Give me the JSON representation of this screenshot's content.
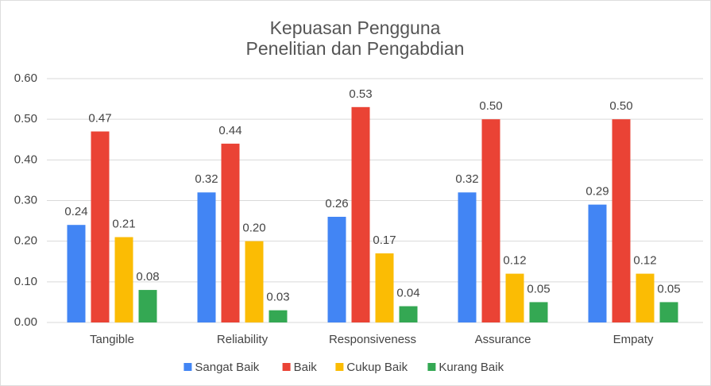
{
  "chart_data": {
    "type": "bar",
    "title": [
      "Kepuasan Pengguna",
      "Penelitian dan Pengabdian"
    ],
    "categories": [
      "Tangible",
      "Reliability",
      "Responsiveness",
      "Assurance",
      "Empaty"
    ],
    "series": [
      {
        "name": "Sangat Baik",
        "color": "#4285f4",
        "values": [
          0.24,
          0.32,
          0.26,
          0.32,
          0.29
        ],
        "value_labels": [
          "0.24",
          "0.32",
          "0.26",
          "0.32",
          "0.29"
        ]
      },
      {
        "name": "Baik",
        "color": "#ea4335",
        "values": [
          0.47,
          0.44,
          0.53,
          0.5,
          0.5
        ],
        "value_labels": [
          "0.47",
          "0.44",
          "0.53",
          "0.50",
          "0.50"
        ]
      },
      {
        "name": "Cukup Baik",
        "color": "#fbbc04",
        "values": [
          0.21,
          0.2,
          0.17,
          0.12,
          0.12
        ],
        "value_labels": [
          "0.21",
          "0.20",
          "0.17",
          "0.12",
          "0.12"
        ]
      },
      {
        "name": "Kurang Baik",
        "color": "#34a853",
        "values": [
          0.08,
          0.03,
          0.04,
          0.05,
          0.05
        ],
        "value_labels": [
          "0.08",
          "0.03",
          "0.04",
          "0.05",
          "0.05"
        ]
      }
    ],
    "ylim": [
      0,
      0.6
    ],
    "yticks": [
      {
        "value": 0,
        "label": "0.00"
      },
      {
        "value": 0.1,
        "label": "0.10"
      },
      {
        "value": 0.2,
        "label": "0.20"
      },
      {
        "value": 0.3,
        "label": "0.30"
      },
      {
        "value": 0.4,
        "label": "0.40"
      },
      {
        "value": 0.5,
        "label": "0.50"
      },
      {
        "value": 0.6,
        "label": "0.60"
      }
    ],
    "grid": true,
    "legend": "bottom"
  }
}
